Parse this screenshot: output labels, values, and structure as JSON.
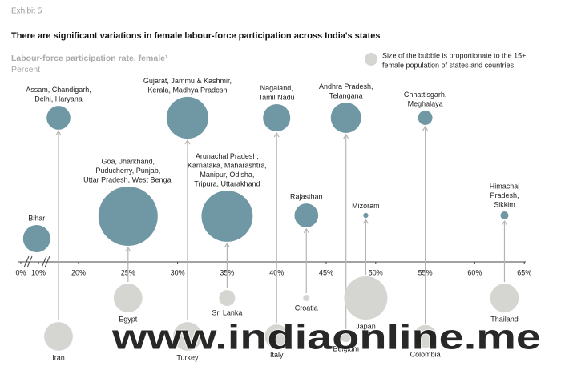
{
  "chart_data": {
    "type": "bubble",
    "exhibit": "Exhibit 5",
    "title": "There are significant variations in female labour-force participation across India's states",
    "x_label": "Labour-force participation rate, female¹",
    "x_unit": "Percent",
    "legend_note": [
      "Size of the bubble is proportionate to the 15+",
      "female population of states and countries"
    ],
    "xlim": [
      0,
      65
    ],
    "xticks": [
      {
        "value": 0,
        "label": "0%"
      },
      {
        "value": 10,
        "label": "10%"
      },
      {
        "value": 20,
        "label": "20%"
      },
      {
        "value": 25,
        "label": "25%"
      },
      {
        "value": 30,
        "label": "30%"
      },
      {
        "value": 35,
        "label": "35%"
      },
      {
        "value": 40,
        "label": "40%"
      },
      {
        "value": 45,
        "label": "45%"
      },
      {
        "value": 50,
        "label": "50%"
      },
      {
        "value": 55,
        "label": "55%"
      },
      {
        "value": 60,
        "label": "60%"
      },
      {
        "value": 65,
        "label": "65%"
      }
    ],
    "series": [
      {
        "color": "#6f98a4",
        "x": [
          9,
          15,
          25,
          31,
          35,
          40,
          43,
          47,
          49,
          55,
          63
        ],
        "size": [
          29,
          22,
          137,
          68,
          102,
          29,
          22,
          36,
          1,
          8,
          2.5
        ],
        "labels": [
          [
            "Bihar"
          ],
          [
            "Assam, Chandigarh,",
            "Delhi, Haryana"
          ],
          [
            "Goa, Jharkhand,",
            "Puducherry, Punjab,",
            "Uttar Pradesh, West Bengal"
          ],
          [
            "Gujarat, Jammu & Kashmir,",
            "Kerala, Madhya Pradesh"
          ],
          [
            "Arunachal Pradesh,",
            "Karnataka, Maharashtra,",
            "Manipur, Odisha,",
            "Tripura, Uttarakhand"
          ],
          [
            "Nagaland,",
            "Tamil Nadu"
          ],
          [
            "Rajasthan"
          ],
          [
            "Andhra Pradesh,",
            "Telangana"
          ],
          [
            "Mizoram"
          ],
          [
            "Chhattisgarh,",
            "Meghalaya"
          ],
          [
            "Himachal",
            "Pradesh,",
            "Sikkim"
          ]
        ]
      },
      {
        "color": "#d5d5d1",
        "x": [
          15,
          25,
          31,
          35,
          40,
          43,
          47,
          49,
          55,
          63
        ],
        "size": [
          32,
          32,
          32,
          10,
          22,
          1.6,
          5,
          73,
          20,
          32
        ],
        "labels": [
          [
            "Iran"
          ],
          [
            "Egypt"
          ],
          [
            "Turkey"
          ],
          [
            "Sri Lanka"
          ],
          [
            "Italy"
          ],
          [
            "Croatia"
          ],
          [
            "Belgium"
          ],
          [
            "Japan"
          ],
          [
            "Colombia"
          ],
          [
            "Thailand"
          ]
        ]
      }
    ],
    "watermark": "www.indiaonline.me"
  }
}
